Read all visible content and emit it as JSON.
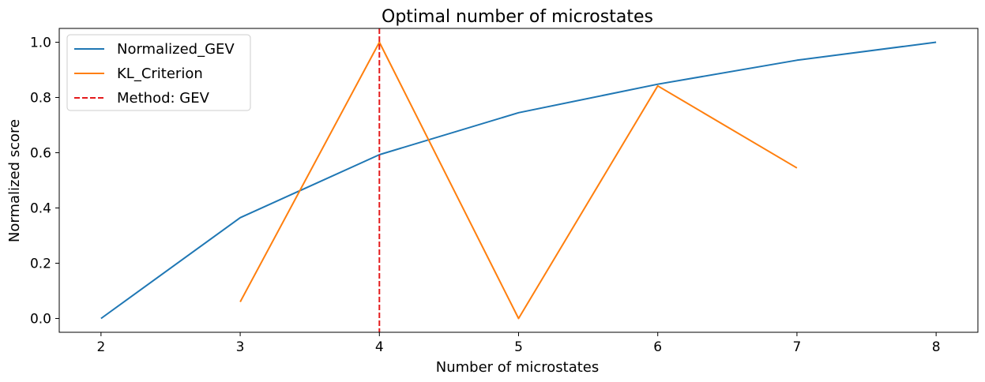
{
  "chart_data": {
    "type": "line",
    "title": "Optimal number of microstates",
    "xlabel": "Number of microstates",
    "ylabel": "Normalized score",
    "xlim": [
      1.7,
      8.3
    ],
    "ylim": [
      -0.05,
      1.05
    ],
    "xticks": [
      2,
      3,
      4,
      5,
      6,
      7,
      8
    ],
    "yticks": [
      0.0,
      0.2,
      0.4,
      0.6,
      0.8,
      1.0
    ],
    "ytick_labels": [
      "0.0",
      "0.2",
      "0.4",
      "0.6",
      "0.8",
      "1.0"
    ],
    "grid": false,
    "legend_position": "top-left",
    "series": [
      {
        "name": "Normalized_GEV",
        "color": "#1f77b4",
        "style": "solid",
        "x": [
          2,
          3,
          4,
          5,
          6,
          7,
          8
        ],
        "y": [
          0.0,
          0.365,
          0.593,
          0.745,
          0.848,
          0.935,
          1.0
        ]
      },
      {
        "name": "KL_Criterion",
        "color": "#ff7f0e",
        "style": "solid",
        "x": [
          3,
          4,
          5,
          6,
          7
        ],
        "y": [
          0.06,
          1.0,
          0.0,
          0.842,
          0.545
        ]
      }
    ],
    "vlines": [
      {
        "name": "Method: GEV",
        "x": 4,
        "color": "#e41a1c",
        "style": "dashed"
      }
    ]
  }
}
